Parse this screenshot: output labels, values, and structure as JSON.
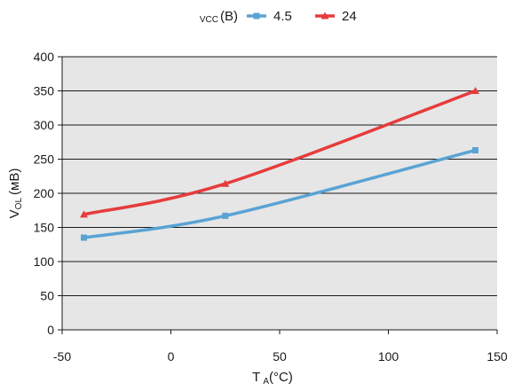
{
  "chart_data": {
    "type": "line",
    "legend": {
      "title_main": "VCC",
      "title_unit": "(В)",
      "position": "top"
    },
    "xaxis": {
      "label_main": "T",
      "label_sub": "A",
      "label_unit": "(°C)",
      "range": [
        -50,
        150
      ],
      "ticks": [
        -50,
        0,
        50,
        100,
        150
      ],
      "tick_labels": [
        "-50",
        "0",
        "50",
        "100",
        "150"
      ]
    },
    "yaxis": {
      "label_main": "V",
      "label_sub": "OL",
      "label_unit": "(мВ)",
      "range": [
        0,
        400
      ],
      "ticks": [
        0,
        50,
        100,
        150,
        200,
        250,
        300,
        350,
        400
      ],
      "tick_labels": [
        "0",
        "50",
        "100",
        "150",
        "200",
        "250",
        "300",
        "350",
        "400"
      ]
    },
    "grid": true,
    "plot_background": "#e6e6e6",
    "series": [
      {
        "name": "4.5",
        "color": "#5aa3d4",
        "marker": "square",
        "x": [
          -40,
          25,
          140
        ],
        "y": [
          135,
          167,
          263
        ]
      },
      {
        "name": "24",
        "color": "#e63c3c",
        "marker": "triangle",
        "x": [
          -40,
          25,
          140
        ],
        "y": [
          169,
          214,
          350
        ]
      }
    ]
  }
}
